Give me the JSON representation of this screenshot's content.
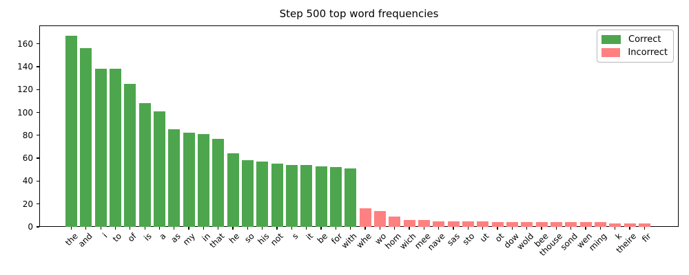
{
  "title": "Step 500 top word frequencies",
  "legend": {
    "correct_label": "Correct",
    "incorrect_label": "Incorrect"
  },
  "colors": {
    "correct": "#4da64d",
    "incorrect": "#ff8080",
    "axis": "#000000",
    "background": "#ffffff"
  },
  "chart_data": {
    "type": "bar",
    "title": "Step 500 top word frequencies",
    "xlabel": "",
    "ylabel": "",
    "ylim": [
      0,
      176
    ],
    "yticks": [
      0,
      20,
      40,
      60,
      80,
      100,
      120,
      140,
      160
    ],
    "grid": false,
    "legend_position": "upper right",
    "x_tick_rotation": 45,
    "categories": [
      "the",
      "and",
      "i",
      "to",
      "of",
      "is",
      "a",
      "as",
      "my",
      "in",
      "that",
      "he",
      "so",
      "his",
      "not",
      "s",
      "it",
      "be",
      "for",
      "with",
      "whe",
      "wo",
      "hom",
      "wich",
      "mee",
      "nave",
      "sas",
      "sto",
      "ut",
      "ot",
      "dow",
      "wold",
      "bee",
      "thouse",
      "sond",
      "wen",
      "ming",
      "k",
      "theire",
      "fir"
    ],
    "series": [
      {
        "name": "Correct",
        "values": [
          167,
          156,
          138,
          138,
          125,
          108,
          101,
          85,
          82,
          81,
          77,
          64,
          58,
          57,
          55,
          54,
          54,
          53,
          52,
          51,
          null,
          null,
          null,
          null,
          null,
          null,
          null,
          null,
          null,
          null,
          null,
          null,
          null,
          null,
          null,
          null,
          null,
          null,
          null,
          null
        ]
      },
      {
        "name": "Incorrect",
        "values": [
          null,
          null,
          null,
          null,
          null,
          null,
          null,
          null,
          null,
          null,
          null,
          null,
          null,
          null,
          null,
          null,
          null,
          null,
          null,
          null,
          16,
          14,
          9,
          6,
          6,
          5,
          5,
          5,
          5,
          4,
          4,
          4,
          4,
          4,
          4,
          4,
          4,
          3,
          3,
          3
        ]
      }
    ]
  }
}
